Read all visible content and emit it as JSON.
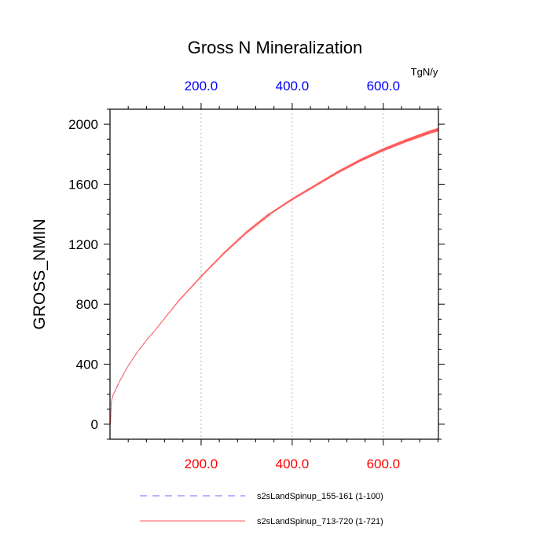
{
  "chart_data": {
    "type": "line",
    "title": "Gross N Mineralization",
    "units_label": "TgN/y",
    "ylabel": "GROSS_NMIN",
    "xlabel": "",
    "xlim": [
      0,
      721
    ],
    "ylim": [
      -100,
      2100
    ],
    "grid": "vertical-dotted",
    "x_ticks_major": [
      200,
      400,
      600
    ],
    "x_tick_labels_bottom": [
      "200.0",
      "400.0",
      "600.0"
    ],
    "x_tick_labels_top": [
      "200.0",
      "400.0",
      "600.0"
    ],
    "y_ticks_major": [
      0,
      400,
      800,
      1200,
      1600,
      2000
    ],
    "y_tick_labels": [
      "0",
      "400",
      "800",
      "1200",
      "1600",
      "2000"
    ],
    "colors": {
      "top_ticks": "#0000ff",
      "bottom_ticks": "#ff0000"
    },
    "series": [
      {
        "name": "s2sLandSpinup_155-161 (1-100)",
        "style": "dashed",
        "color": "#6b6bff",
        "x": [
          1,
          3,
          6,
          10,
          20,
          40,
          60,
          80,
          100
        ],
        "y": [
          0,
          150,
          190,
          215,
          280,
          390,
          480,
          560,
          630
        ]
      },
      {
        "name": "s2sLandSpinup_713-720 (1-721)",
        "style": "solid",
        "color": "#ff5a5a",
        "x": [
          1,
          3,
          6,
          10,
          20,
          40,
          60,
          80,
          100,
          150,
          200,
          250,
          300,
          350,
          400,
          450,
          500,
          550,
          600,
          650,
          700,
          721
        ],
        "y": [
          0,
          150,
          190,
          215,
          280,
          390,
          480,
          560,
          630,
          820,
          985,
          1140,
          1280,
          1400,
          1500,
          1590,
          1680,
          1760,
          1830,
          1890,
          1945,
          1965
        ]
      }
    ]
  }
}
